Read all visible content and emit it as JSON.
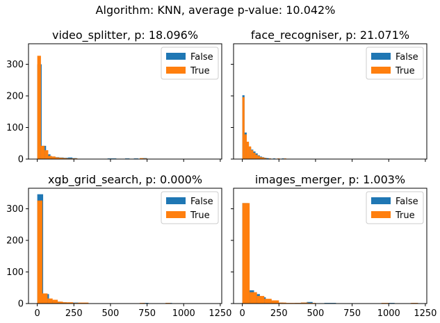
{
  "chart_data": {
    "type": "histogram",
    "title": "Algorithm: KNN, average p-value: 10.042%",
    "xlim": [
      -60,
      1260
    ],
    "ylim": [
      0,
      365
    ],
    "x_ticks": [
      0,
      250,
      500,
      750,
      1000,
      1250
    ],
    "y_ticks": [
      0,
      100,
      200,
      300
    ],
    "x_tick_labels_on_bottom_row_only": true,
    "y_tick_labels_on_left_column_only": true,
    "series_colors": {
      "False": "#1f77b4",
      "True": "#ff7f0e"
    },
    "legend_position": "upper right",
    "legend": [
      "False",
      "True"
    ],
    "panels": [
      {
        "title": "video_splitter, p: 18.096%",
        "series": [
          {
            "name": "False",
            "bins": [
              [
                0,
                30,
                300
              ],
              [
                30,
                60,
                42
              ],
              [
                60,
                90,
                15
              ],
              [
                90,
                120,
                8
              ],
              [
                120,
                150,
                6
              ],
              [
                150,
                180,
                5
              ],
              [
                180,
                210,
                4
              ],
              [
                210,
                240,
                5
              ],
              [
                240,
                270,
                3
              ],
              [
                480,
                510,
                2
              ],
              [
                510,
                540,
                2
              ],
              [
                600,
                630,
                2
              ],
              [
                660,
                690,
                2
              ],
              [
                720,
                750,
                3
              ]
            ]
          },
          {
            "name": "True",
            "bins": [
              [
                0,
                25,
                327
              ],
              [
                25,
                50,
                42
              ],
              [
                50,
                75,
                28
              ],
              [
                75,
                100,
                10
              ],
              [
                100,
                125,
                8
              ],
              [
                125,
                150,
                5
              ],
              [
                150,
                175,
                4
              ],
              [
                175,
                200,
                3
              ],
              [
                200,
                225,
                2
              ],
              [
                225,
                250,
                2
              ],
              [
                250,
                275,
                2
              ],
              [
                700,
                725,
                3
              ],
              [
                725,
                750,
                2
              ]
            ]
          }
        ]
      },
      {
        "title": "face_recogniser, p: 21.071%",
        "series": [
          {
            "name": "False",
            "bins": [
              [
                0,
                15,
                202
              ],
              [
                15,
                30,
                84
              ],
              [
                30,
                45,
                50
              ],
              [
                45,
                60,
                37
              ],
              [
                60,
                75,
                30
              ],
              [
                75,
                90,
                24
              ],
              [
                90,
                105,
                18
              ],
              [
                105,
                120,
                12
              ],
              [
                120,
                135,
                8
              ],
              [
                135,
                150,
                6
              ],
              [
                150,
                165,
                4
              ],
              [
                165,
                180,
                3
              ],
              [
                180,
                195,
                2
              ],
              [
                210,
                225,
                2
              ],
              [
                270,
                285,
                2
              ]
            ]
          },
          {
            "name": "True",
            "bins": [
              [
                0,
                15,
                196
              ],
              [
                15,
                30,
                78
              ],
              [
                30,
                45,
                55
              ],
              [
                45,
                60,
                40
              ],
              [
                60,
                75,
                28
              ],
              [
                75,
                90,
                20
              ],
              [
                90,
                105,
                14
              ],
              [
                105,
                120,
                10
              ],
              [
                120,
                135,
                6
              ],
              [
                135,
                150,
                5
              ],
              [
                150,
                165,
                3
              ],
              [
                180,
                195,
                2
              ],
              [
                240,
                255,
                2
              ],
              [
                285,
                300,
                2
              ]
            ]
          }
        ]
      },
      {
        "title": "xgb_grid_search, p: 0.000%",
        "series": [
          {
            "name": "False",
            "bins": [
              [
                0,
                40,
                346
              ],
              [
                40,
                80,
                30
              ],
              [
                80,
                120,
                10
              ],
              [
                120,
                160,
                6
              ],
              [
                160,
                200,
                4
              ],
              [
                200,
                240,
                2
              ],
              [
                240,
                280,
                3
              ],
              [
                280,
                320,
                2
              ],
              [
                720,
                760,
                2
              ],
              [
                880,
                920,
                2
              ]
            ]
          },
          {
            "name": "True",
            "bins": [
              [
                0,
                35,
                326
              ],
              [
                35,
                70,
                32
              ],
              [
                70,
                105,
                16
              ],
              [
                105,
                140,
                12
              ],
              [
                140,
                175,
                6
              ],
              [
                175,
                210,
                4
              ],
              [
                210,
                245,
                4
              ],
              [
                245,
                280,
                2
              ],
              [
                280,
                315,
                3
              ],
              [
                315,
                350,
                3
              ],
              [
                700,
                735,
                2
              ],
              [
                875,
                910,
                2
              ]
            ]
          }
        ]
      },
      {
        "title": "images_merger, p: 1.003%",
        "series": [
          {
            "name": "False",
            "bins": [
              [
                0,
                40,
                318
              ],
              [
                40,
                80,
                42
              ],
              [
                80,
                120,
                30
              ],
              [
                120,
                160,
                20
              ],
              [
                160,
                200,
                12
              ],
              [
                200,
                240,
                8
              ],
              [
                240,
                280,
                3
              ],
              [
                360,
                400,
                2
              ],
              [
                400,
                440,
                3
              ],
              [
                440,
                480,
                5
              ],
              [
                560,
                600,
                2
              ],
              [
                600,
                640,
                2
              ],
              [
                1000,
                1040,
                2
              ],
              [
                1160,
                1200,
                2
              ]
            ]
          },
          {
            "name": "True",
            "bins": [
              [
                0,
                50,
                318
              ],
              [
                50,
                100,
                36
              ],
              [
                100,
                150,
                24
              ],
              [
                150,
                200,
                15
              ],
              [
                200,
                250,
                10
              ],
              [
                250,
                300,
                3
              ],
              [
                300,
                350,
                2
              ],
              [
                350,
                400,
                2
              ],
              [
                400,
                450,
                3
              ],
              [
                450,
                500,
                2
              ],
              [
                950,
                1000,
                2
              ],
              [
                1150,
                1200,
                2
              ]
            ]
          }
        ]
      }
    ]
  }
}
